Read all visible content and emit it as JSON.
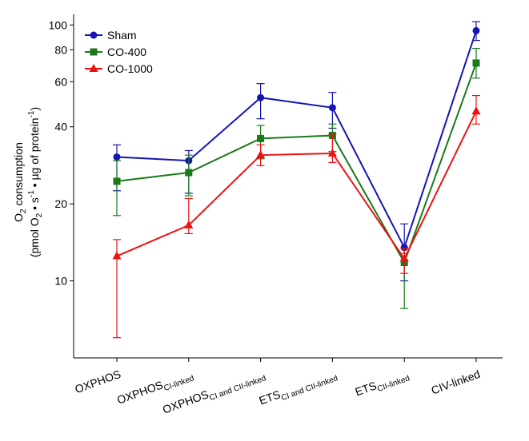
{
  "chart_data": {
    "type": "line",
    "title": "",
    "y_scale": "log",
    "ylim": [
      5,
      110
    ],
    "y_ticks": [
      10,
      20,
      40,
      60,
      80,
      100
    ],
    "y_tick_labels": [
      "10",
      "20",
      "40",
      "60",
      "80",
      "100"
    ],
    "ylabel": {
      "line1": "O2 consumption",
      "line2": "(pmol O2 • s-1 • µg of protein-1)"
    },
    "categories": [
      {
        "main": "OXPHOS",
        "sub": ""
      },
      {
        "main": "OXPHOS",
        "sub": "CI-linked"
      },
      {
        "main": "OXPHOS",
        "sub": "CI and CII-linked"
      },
      {
        "main": "ETS",
        "sub": "CI and CII-linked"
      },
      {
        "main": "ETS",
        "sub": "CII-linked"
      },
      {
        "main": "CIV-linked",
        "sub": ""
      }
    ],
    "series": [
      {
        "name": "Sham",
        "color": "#1414b4",
        "marker": "circle",
        "values": [
          30.5,
          29.5,
          52,
          47.5,
          13.5,
          95
        ],
        "err_upper": [
          3.5,
          2.8,
          7,
          7,
          3.2,
          8
        ],
        "err_lower": [
          8,
          7.5,
          9,
          8,
          3.5,
          8
        ]
      },
      {
        "name": "CO-400",
        "color": "#1a7a1a",
        "marker": "square",
        "values": [
          24.5,
          26.5,
          36,
          37,
          11.8,
          71
        ],
        "err_upper": [
          5,
          4.5,
          4.5,
          4,
          1,
          10
        ],
        "err_lower": [
          6.5,
          5,
          6,
          5,
          4,
          9
        ]
      },
      {
        "name": "CO-1000",
        "color": "#ee1111",
        "marker": "triangle",
        "values": [
          12.5,
          16.5,
          31,
          31.5,
          12.2,
          46
        ],
        "err_upper": [
          2,
          4.5,
          3,
          6,
          1.2,
          7
        ],
        "err_lower": [
          6.5,
          1.2,
          2.8,
          2.5,
          1.5,
          5
        ]
      }
    ],
    "legend_position": "top-left",
    "grid": false
  }
}
